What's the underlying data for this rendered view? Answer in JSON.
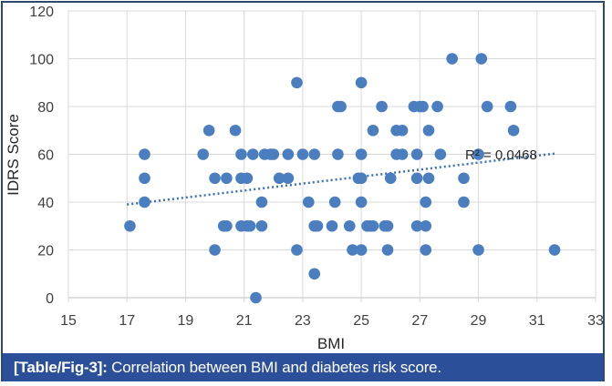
{
  "caption": {
    "label": "[Table/Fig-3]:",
    "text": " Correlation between BMI and diabetes risk score."
  },
  "colors": {
    "point": "#4a7ebf",
    "trendline": "#3a6fb5",
    "caption_bg": "#2b4f98",
    "border": "#2d4a6e",
    "grid": "#d9d9d9"
  },
  "chart_data": {
    "type": "scatter",
    "title": "",
    "xlabel": "BMI",
    "ylabel": "IDRS Score",
    "xlim": [
      15,
      33
    ],
    "ylim": [
      0,
      120
    ],
    "xticks": [
      15,
      17,
      19,
      21,
      23,
      25,
      27,
      29,
      31,
      33
    ],
    "yticks": [
      0,
      20,
      40,
      60,
      80,
      100,
      120
    ],
    "grid": true,
    "legend": "none",
    "trendline": {
      "type": "linear",
      "x": [
        17,
        31.6
      ],
      "y": [
        39,
        60.3
      ],
      "style": "dotted",
      "r_squared_label": "R² = 0.0468"
    },
    "points": [
      [
        17.1,
        30
      ],
      [
        17.6,
        60
      ],
      [
        17.6,
        50
      ],
      [
        17.6,
        40
      ],
      [
        19.6,
        60
      ],
      [
        19.8,
        70
      ],
      [
        20.0,
        50
      ],
      [
        20.0,
        20
      ],
      [
        20.3,
        30
      ],
      [
        20.4,
        30
      ],
      [
        20.4,
        50
      ],
      [
        20.7,
        70
      ],
      [
        20.9,
        60
      ],
      [
        20.9,
        50
      ],
      [
        20.9,
        30
      ],
      [
        21.1,
        50
      ],
      [
        21.1,
        30
      ],
      [
        21.2,
        30
      ],
      [
        21.3,
        60
      ],
      [
        21.4,
        0
      ],
      [
        21.6,
        40
      ],
      [
        21.6,
        30
      ],
      [
        21.7,
        60
      ],
      [
        21.9,
        60
      ],
      [
        22.0,
        60
      ],
      [
        22.2,
        50
      ],
      [
        22.5,
        50
      ],
      [
        22.5,
        60
      ],
      [
        22.8,
        90
      ],
      [
        22.8,
        20
      ],
      [
        23.0,
        60
      ],
      [
        23.2,
        40
      ],
      [
        23.4,
        60
      ],
      [
        23.4,
        30
      ],
      [
        23.4,
        10
      ],
      [
        23.5,
        30
      ],
      [
        24.0,
        30
      ],
      [
        24.1,
        40
      ],
      [
        24.2,
        60
      ],
      [
        24.2,
        80
      ],
      [
        24.3,
        80
      ],
      [
        24.6,
        30
      ],
      [
        24.7,
        20
      ],
      [
        24.9,
        50
      ],
      [
        25.0,
        50
      ],
      [
        25.0,
        90
      ],
      [
        25.0,
        60
      ],
      [
        25.0,
        40
      ],
      [
        25.0,
        20
      ],
      [
        25.2,
        30
      ],
      [
        25.3,
        30
      ],
      [
        25.4,
        30
      ],
      [
        25.4,
        70
      ],
      [
        25.7,
        80
      ],
      [
        25.8,
        30
      ],
      [
        25.9,
        30
      ],
      [
        25.9,
        20
      ],
      [
        26.0,
        50
      ],
      [
        26.2,
        70
      ],
      [
        26.2,
        60
      ],
      [
        26.4,
        70
      ],
      [
        26.4,
        60
      ],
      [
        26.8,
        80
      ],
      [
        26.9,
        60
      ],
      [
        26.9,
        30
      ],
      [
        26.9,
        50
      ],
      [
        27.0,
        80
      ],
      [
        27.1,
        80
      ],
      [
        27.2,
        40
      ],
      [
        27.2,
        30
      ],
      [
        27.2,
        20
      ],
      [
        27.3,
        70
      ],
      [
        27.3,
        50
      ],
      [
        27.6,
        80
      ],
      [
        27.7,
        60
      ],
      [
        28.1,
        100
      ],
      [
        28.5,
        50
      ],
      [
        28.5,
        40
      ],
      [
        29.0,
        60
      ],
      [
        29.0,
        20
      ],
      [
        29.1,
        100
      ],
      [
        29.3,
        80
      ],
      [
        30.1,
        80
      ],
      [
        30.2,
        70
      ],
      [
        31.6,
        20
      ]
    ]
  }
}
